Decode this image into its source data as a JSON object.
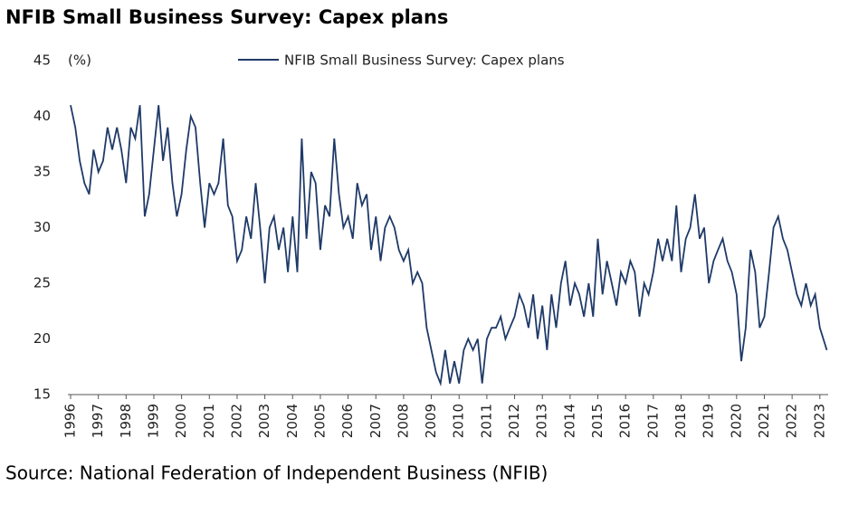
{
  "chart_data": {
    "type": "line",
    "title": "NFIB Small Business Survey: Capex plans",
    "y_unit": "(%)",
    "source": "Source: National Federation of Independent Business (NFIB)",
    "series": [
      {
        "name": "NFIB Small Business Survey: Capex plans",
        "color": "#1f3a68",
        "x": [
          1996.0,
          1996.17,
          1996.33,
          1996.5,
          1996.67,
          1996.83,
          1997.0,
          1997.17,
          1997.33,
          1997.5,
          1997.67,
          1997.83,
          1998.0,
          1998.17,
          1998.33,
          1998.5,
          1998.67,
          1998.83,
          1999.0,
          1999.17,
          1999.33,
          1999.5,
          1999.67,
          1999.83,
          2000.0,
          2000.17,
          2000.33,
          2000.5,
          2000.67,
          2000.83,
          2001.0,
          2001.17,
          2001.33,
          2001.5,
          2001.67,
          2001.83,
          2002.0,
          2002.17,
          2002.33,
          2002.5,
          2002.67,
          2002.83,
          2003.0,
          2003.17,
          2003.33,
          2003.5,
          2003.67,
          2003.83,
          2004.0,
          2004.17,
          2004.33,
          2004.5,
          2004.67,
          2004.83,
          2005.0,
          2005.17,
          2005.33,
          2005.5,
          2005.67,
          2005.83,
          2006.0,
          2006.17,
          2006.33,
          2006.5,
          2006.67,
          2006.83,
          2007.0,
          2007.17,
          2007.33,
          2007.5,
          2007.67,
          2007.83,
          2008.0,
          2008.17,
          2008.33,
          2008.5,
          2008.67,
          2008.83,
          2009.0,
          2009.17,
          2009.33,
          2009.5,
          2009.67,
          2009.83,
          2010.0,
          2010.17,
          2010.33,
          2010.5,
          2010.67,
          2010.83,
          2011.0,
          2011.17,
          2011.33,
          2011.5,
          2011.67,
          2011.83,
          2012.0,
          2012.17,
          2012.33,
          2012.5,
          2012.67,
          2012.83,
          2013.0,
          2013.17,
          2013.33,
          2013.5,
          2013.67,
          2013.83,
          2014.0,
          2014.17,
          2014.33,
          2014.5,
          2014.67,
          2014.83,
          2015.0,
          2015.17,
          2015.33,
          2015.5,
          2015.67,
          2015.83,
          2016.0,
          2016.17,
          2016.33,
          2016.5,
          2016.67,
          2016.83,
          2017.0,
          2017.17,
          2017.33,
          2017.5,
          2017.67,
          2017.83,
          2018.0,
          2018.17,
          2018.33,
          2018.5,
          2018.67,
          2018.83,
          2019.0,
          2019.17,
          2019.33,
          2019.5,
          2019.67,
          2019.83,
          2020.0,
          2020.17,
          2020.33,
          2020.5,
          2020.67,
          2020.83,
          2021.0,
          2021.17,
          2021.33,
          2021.5,
          2021.67,
          2021.83,
          2022.0,
          2022.17,
          2022.33,
          2022.5,
          2022.67,
          2022.83,
          2023.0,
          2023.25
        ],
        "values": [
          41,
          39,
          36,
          34,
          33,
          37,
          35,
          36,
          39,
          37,
          39,
          37,
          34,
          39,
          38,
          41,
          31,
          33,
          37,
          41,
          36,
          39,
          34,
          31,
          33,
          37,
          40,
          39,
          34,
          30,
          34,
          33,
          34,
          38,
          32,
          31,
          27,
          28,
          31,
          29,
          34,
          30,
          25,
          30,
          31,
          28,
          30,
          26,
          31,
          26,
          38,
          29,
          35,
          34,
          28,
          32,
          31,
          38,
          33,
          30,
          31,
          29,
          34,
          32,
          33,
          28,
          31,
          27,
          30,
          31,
          30,
          28,
          27,
          28,
          25,
          26,
          25,
          21,
          19,
          17,
          16,
          19,
          16,
          18,
          16,
          19,
          20,
          19,
          20,
          16,
          20,
          21,
          21,
          22,
          20,
          21,
          22,
          24,
          23,
          21,
          24,
          20,
          23,
          19,
          24,
          21,
          25,
          27,
          23,
          25,
          24,
          22,
          25,
          22,
          29,
          24,
          27,
          25,
          23,
          26,
          25,
          27,
          26,
          22,
          25,
          24,
          26,
          29,
          27,
          29,
          27,
          32,
          26,
          29,
          30,
          33,
          29,
          30,
          25,
          27,
          28,
          29,
          27,
          26,
          24,
          18,
          21,
          28,
          26,
          21,
          22,
          26,
          30,
          31,
          29,
          28,
          26,
          24,
          23,
          25,
          23,
          24,
          21,
          19
        ]
      }
    ],
    "xlim": [
      1996,
      2023.3
    ],
    "xticks": [
      1996,
      1997,
      1998,
      1999,
      2000,
      2001,
      2002,
      2003,
      2004,
      2005,
      2006,
      2007,
      2008,
      2009,
      2010,
      2011,
      2012,
      2013,
      2014,
      2015,
      2016,
      2017,
      2018,
      2019,
      2020,
      2021,
      2022,
      2023
    ],
    "ylim": [
      15,
      45
    ],
    "yticks": [
      15,
      20,
      25,
      30,
      35,
      40,
      45
    ],
    "grid": false
  }
}
